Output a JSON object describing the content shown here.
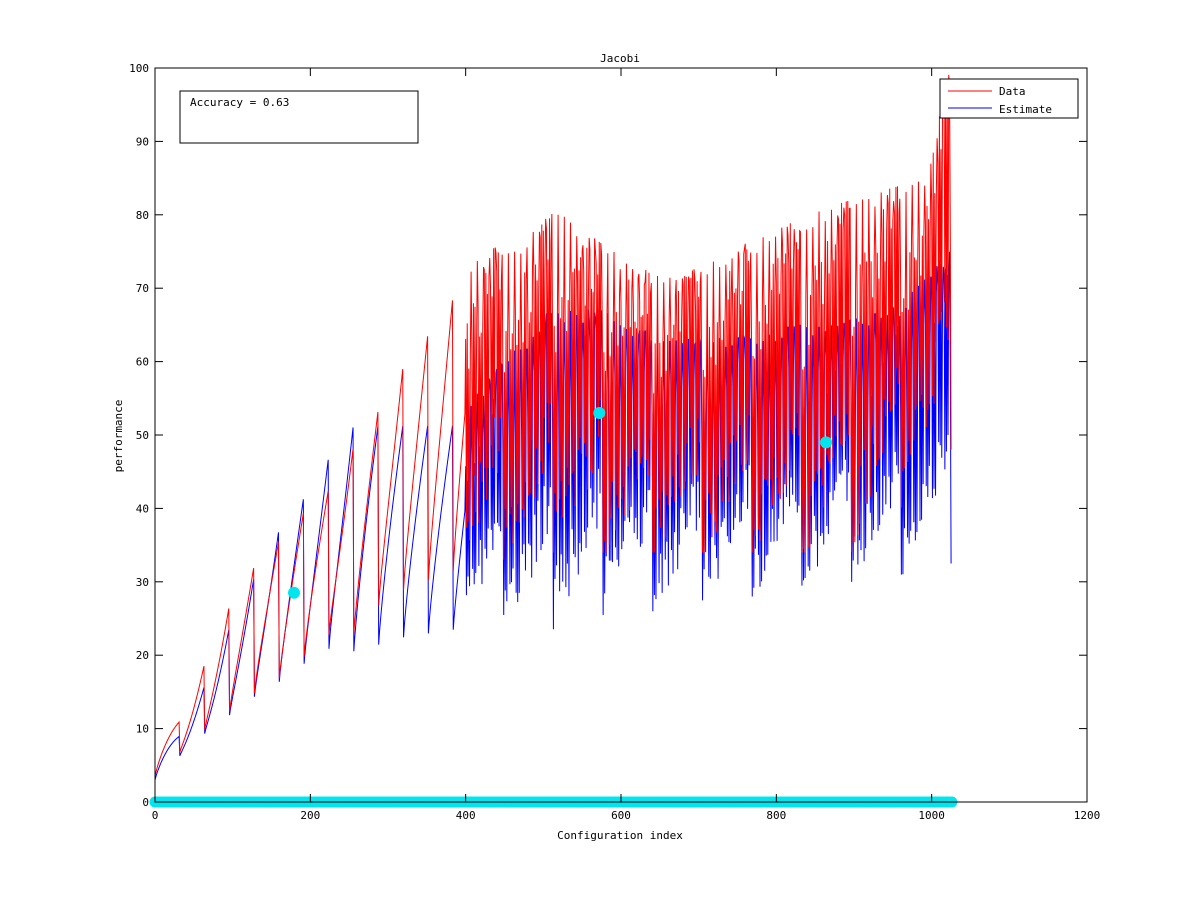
{
  "chart_data": {
    "type": "line",
    "title": "Jacobi",
    "xlabel": "Configuration index",
    "ylabel": "performance",
    "xlim": [
      0,
      1200
    ],
    "ylim": [
      0,
      100
    ],
    "xticks": [
      0,
      200,
      400,
      600,
      800,
      1000,
      1200
    ],
    "yticks": [
      0,
      10,
      20,
      30,
      40,
      50,
      60,
      70,
      80,
      90,
      100
    ],
    "grid": false,
    "legend_position": "top-right",
    "annotation": "Accuracy = 0.63",
    "n_points": 1026,
    "colors": {
      "data": "#ff0000",
      "estimate": "#0000ff",
      "markers": "#00e5ee"
    },
    "series": [
      {
        "name": "Data",
        "color": "#ff0000",
        "description": "sawtooth envelope; peaks per segment",
        "peaks": [
          {
            "x": 32,
            "y": 11
          },
          {
            "x": 64,
            "y": 19
          },
          {
            "x": 96,
            "y": 27
          },
          {
            "x": 128,
            "y": 32.5
          },
          {
            "x": 160,
            "y": 36
          },
          {
            "x": 192,
            "y": 40
          },
          {
            "x": 224,
            "y": 43
          },
          {
            "x": 256,
            "y": 49
          },
          {
            "x": 288,
            "y": 54
          },
          {
            "x": 320,
            "y": 60
          },
          {
            "x": 352,
            "y": 64.5
          },
          {
            "x": 384,
            "y": 69.5
          },
          {
            "x": 416,
            "y": 74.5
          },
          {
            "x": 448,
            "y": 76
          },
          {
            "x": 480,
            "y": 77
          },
          {
            "x": 512,
            "y": 81
          },
          {
            "x": 576,
            "y": 76
          },
          {
            "x": 640,
            "y": 72
          },
          {
            "x": 704,
            "y": 73
          },
          {
            "x": 768,
            "y": 76.5
          },
          {
            "x": 800,
            "y": 78
          },
          {
            "x": 864,
            "y": 81
          },
          {
            "x": 896,
            "y": 82
          },
          {
            "x": 928,
            "y": 83
          },
          {
            "x": 960,
            "y": 84
          },
          {
            "x": 992,
            "y": 85
          },
          {
            "x": 1024,
            "y": 100
          }
        ],
        "troughs": [
          {
            "x": 0,
            "y": 3.5
          },
          {
            "x": 34,
            "y": 7
          },
          {
            "x": 66,
            "y": 10
          },
          {
            "x": 98,
            "y": 12.5
          },
          {
            "x": 130,
            "y": 15
          },
          {
            "x": 162,
            "y": 17
          },
          {
            "x": 194,
            "y": 20
          },
          {
            "x": 226,
            "y": 23
          },
          {
            "x": 258,
            "y": 23
          },
          {
            "x": 290,
            "y": 27
          },
          {
            "x": 322,
            "y": 29
          },
          {
            "x": 384,
            "y": 31.5
          },
          {
            "x": 448,
            "y": 33
          },
          {
            "x": 512,
            "y": 34
          },
          {
            "x": 576,
            "y": 34
          },
          {
            "x": 640,
            "y": 34
          },
          {
            "x": 704,
            "y": 34
          },
          {
            "x": 768,
            "y": 34
          },
          {
            "x": 832,
            "y": 34
          },
          {
            "x": 896,
            "y": 34
          },
          {
            "x": 960,
            "y": 40
          },
          {
            "x": 1024,
            "y": 48
          }
        ]
      },
      {
        "name": "Estimate",
        "color": "#0000ff",
        "description": "sawtooth envelope; troughs per segment",
        "peaks": [
          {
            "x": 32,
            "y": 9
          },
          {
            "x": 64,
            "y": 16
          },
          {
            "x": 96,
            "y": 24
          },
          {
            "x": 128,
            "y": 31
          },
          {
            "x": 160,
            "y": 37.5
          },
          {
            "x": 192,
            "y": 42
          },
          {
            "x": 224,
            "y": 47.5
          },
          {
            "x": 256,
            "y": 52
          },
          {
            "x": 320,
            "y": 52
          },
          {
            "x": 384,
            "y": 52
          },
          {
            "x": 448,
            "y": 60
          },
          {
            "x": 512,
            "y": 67.5
          },
          {
            "x": 576,
            "y": 67
          },
          {
            "x": 640,
            "y": 64
          },
          {
            "x": 704,
            "y": 63
          },
          {
            "x": 768,
            "y": 64
          },
          {
            "x": 832,
            "y": 65
          },
          {
            "x": 896,
            "y": 66
          },
          {
            "x": 960,
            "y": 68
          },
          {
            "x": 1024,
            "y": 76
          }
        ],
        "troughs": [
          {
            "x": 0,
            "y": 3
          },
          {
            "x": 34,
            "y": 6.5
          },
          {
            "x": 66,
            "y": 9.5
          },
          {
            "x": 98,
            "y": 12
          },
          {
            "x": 130,
            "y": 14.5
          },
          {
            "x": 162,
            "y": 16.5
          },
          {
            "x": 194,
            "y": 19
          },
          {
            "x": 226,
            "y": 21
          },
          {
            "x": 258,
            "y": 20.5
          },
          {
            "x": 322,
            "y": 22.5
          },
          {
            "x": 386,
            "y": 23.5
          },
          {
            "x": 450,
            "y": 25.5
          },
          {
            "x": 514,
            "y": 23.5
          },
          {
            "x": 578,
            "y": 25.5
          },
          {
            "x": 642,
            "y": 26
          },
          {
            "x": 706,
            "y": 27.5
          },
          {
            "x": 770,
            "y": 28
          },
          {
            "x": 834,
            "y": 29.5
          },
          {
            "x": 898,
            "y": 30
          },
          {
            "x": 962,
            "y": 31
          },
          {
            "x": 1010,
            "y": 32.5
          }
        ]
      }
    ],
    "highlight_points": [
      {
        "x": 179,
        "y": 28.5
      },
      {
        "x": 572,
        "y": 53
      },
      {
        "x": 864,
        "y": 49
      }
    ],
    "baseline_markers": {
      "y": 0,
      "x_start": 0,
      "x_end": 1026
    }
  }
}
